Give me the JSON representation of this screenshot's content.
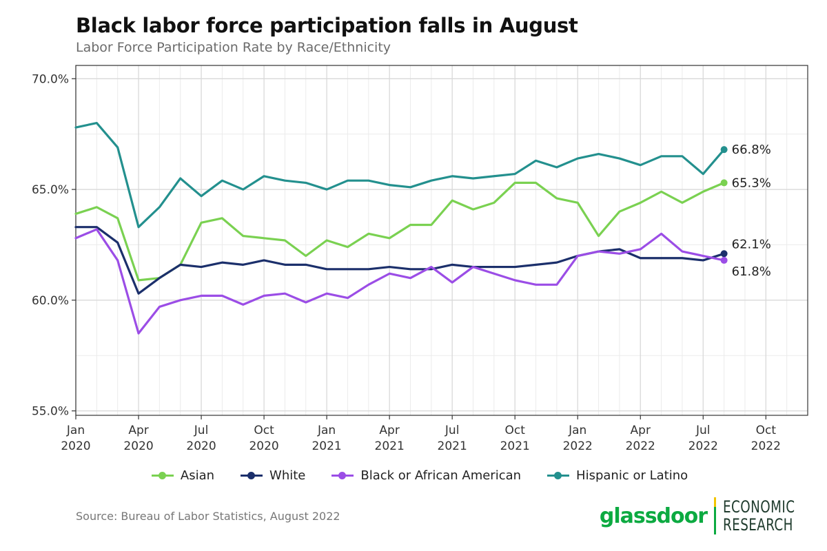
{
  "header": {
    "title": "Black labor force participation falls in August",
    "subtitle": "Labor Force Participation Rate by Race/Ethnicity"
  },
  "footer": {
    "source": "Source: Bureau of Labor Statistics, August 2022",
    "brand_name": "glassdoor",
    "brand_unit_line1": "ECONOMIC",
    "brand_unit_line2": "RESEARCH"
  },
  "chart_data": {
    "type": "line",
    "title": "Black labor force participation falls in August",
    "subtitle": "Labor Force Participation Rate by Race/Ethnicity",
    "xlabel": "",
    "ylabel": "",
    "ylim": [
      54.8,
      70.6
    ],
    "yticks": [
      55,
      60,
      65,
      70
    ],
    "ytick_labels": [
      "55.0%",
      "60.0%",
      "65.0%",
      "70.0%"
    ],
    "xlim": [
      0,
      35
    ],
    "xticks": [
      0,
      3,
      6,
      9,
      12,
      15,
      18,
      21,
      24,
      27,
      30,
      33
    ],
    "xtick_labels": [
      [
        "Jan",
        "2020"
      ],
      [
        "Apr",
        "2020"
      ],
      [
        "Jul",
        "2020"
      ],
      [
        "Oct",
        "2020"
      ],
      [
        "Jan",
        "2021"
      ],
      [
        "Apr",
        "2021"
      ],
      [
        "Jul",
        "2021"
      ],
      [
        "Oct",
        "2021"
      ],
      [
        "Jan",
        "2022"
      ],
      [
        "Apr",
        "2022"
      ],
      [
        "Jul",
        "2022"
      ],
      [
        "Oct",
        "2022"
      ]
    ],
    "grid": true,
    "legend_position": "bottom",
    "x": [
      0,
      1,
      2,
      3,
      4,
      5,
      6,
      7,
      8,
      9,
      10,
      11,
      12,
      13,
      14,
      15,
      16,
      17,
      18,
      19,
      20,
      21,
      22,
      23,
      24,
      25,
      26,
      27,
      28,
      29,
      30,
      31
    ],
    "series": [
      {
        "name": "Hispanic or Latino",
        "color": "#23908e",
        "values": [
          67.8,
          68.0,
          66.9,
          63.3,
          64.2,
          65.5,
          64.7,
          65.4,
          65.0,
          65.6,
          65.4,
          65.3,
          65.0,
          65.4,
          65.4,
          65.2,
          65.1,
          65.4,
          65.6,
          65.5,
          65.6,
          65.7,
          66.3,
          66.0,
          66.4,
          66.6,
          66.4,
          66.1,
          66.5,
          66.5,
          65.7,
          66.8
        ],
        "end_label": "66.8%"
      },
      {
        "name": "Asian",
        "color": "#7ad151",
        "values": [
          63.9,
          64.2,
          63.7,
          60.9,
          61.0,
          61.6,
          63.5,
          63.7,
          62.9,
          62.8,
          62.7,
          62.0,
          62.7,
          62.4,
          63.0,
          62.8,
          63.4,
          63.4,
          64.5,
          64.1,
          64.4,
          65.3,
          65.3,
          64.6,
          64.4,
          62.9,
          64.0,
          64.4,
          64.9,
          64.4,
          64.9,
          65.3
        ],
        "end_label": "65.3%"
      },
      {
        "name": "White",
        "color": "#1b2f6b",
        "values": [
          63.3,
          63.3,
          62.6,
          60.3,
          61.0,
          61.6,
          61.5,
          61.7,
          61.6,
          61.8,
          61.6,
          61.6,
          61.4,
          61.4,
          61.4,
          61.5,
          61.4,
          61.4,
          61.6,
          61.5,
          61.5,
          61.5,
          61.6,
          61.7,
          62.0,
          62.2,
          62.3,
          61.9,
          61.9,
          61.9,
          61.8,
          62.1
        ],
        "end_label": "62.1%"
      },
      {
        "name": "Black or African American",
        "color": "#9b4de6",
        "values": [
          62.8,
          63.2,
          61.8,
          58.5,
          59.7,
          60.0,
          60.2,
          60.2,
          59.8,
          60.2,
          60.3,
          59.9,
          60.3,
          60.1,
          60.7,
          61.2,
          61.0,
          61.5,
          60.8,
          61.5,
          61.2,
          60.9,
          60.7,
          60.7,
          62.0,
          62.2,
          62.1,
          62.3,
          63.0,
          62.2,
          62.0,
          61.8
        ],
        "end_label": "61.8%"
      }
    ],
    "legend_order": [
      "Asian",
      "White",
      "Black or African American",
      "Hispanic or Latino"
    ]
  }
}
